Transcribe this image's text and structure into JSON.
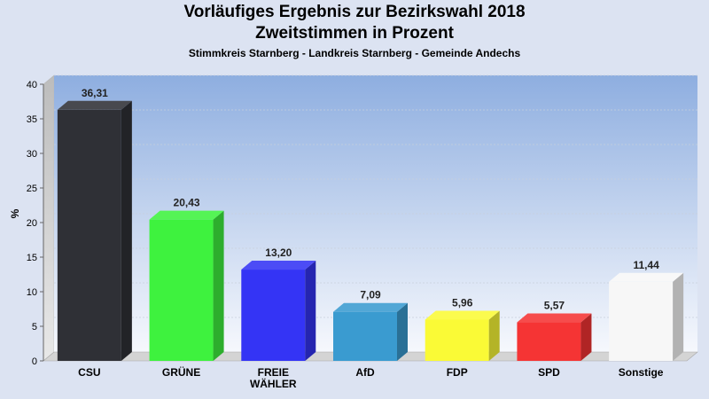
{
  "title": "Vorläufiges Ergebnis zur Bezirkswahl 2018",
  "subtitle": "Zweitstimmen in Prozent",
  "subtitle2": "Stimmkreis Starnberg - Landkreis Starnberg - Gemeinde Andechs",
  "chart_data": {
    "type": "bar",
    "title": "Vorläufiges Ergebnis zur Bezirkswahl 2018",
    "subtitle": "Zweitstimmen in Prozent",
    "ylabel": "%",
    "xlabel": "",
    "ylim": [
      0,
      40
    ],
    "yticks": [
      0,
      5,
      10,
      15,
      20,
      25,
      30,
      35,
      40
    ],
    "grid": true,
    "categories": [
      "CSU",
      "GRÜNE",
      "FREIE WÄHLER",
      "AfD",
      "FDP",
      "SPD",
      "Sonstige"
    ],
    "category_lines": [
      [
        "CSU"
      ],
      [
        "GRÜNE"
      ],
      [
        "FREIE",
        "WÄHLER"
      ],
      [
        "AfD"
      ],
      [
        "FDP"
      ],
      [
        "SPD"
      ],
      [
        "Sonstige"
      ]
    ],
    "values": [
      36.31,
      20.43,
      13.2,
      7.09,
      5.96,
      5.57,
      11.44
    ],
    "value_labels": [
      "36,31",
      "20,43",
      "13,20",
      "7,09",
      "5,96",
      "5,57",
      "11,44"
    ],
    "colors": [
      "#2f3036",
      "#3ef23e",
      "#3434f5",
      "#3a9bd0",
      "#fafa36",
      "#f53434",
      "#f7f7f7"
    ]
  }
}
